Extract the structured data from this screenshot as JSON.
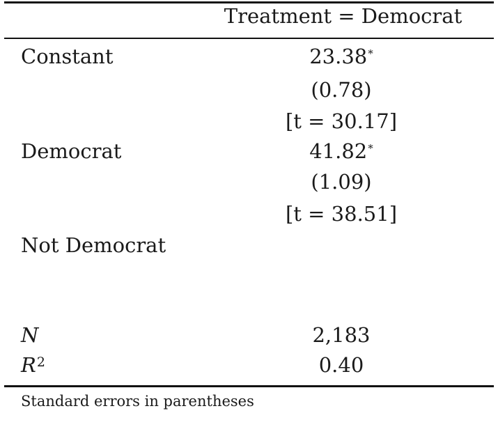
{
  "table": {
    "column_header": "Treatment = Democrat",
    "rows": [
      {
        "label": "Constant",
        "coef": "23.38",
        "star": "*",
        "se": "(0.78)",
        "t": "[t = 30.17]"
      },
      {
        "label": "Democrat",
        "coef": "41.82",
        "star": "*",
        "se": "(1.09)",
        "t": "[t = 38.51]"
      },
      {
        "label": "Not Democrat",
        "coef": "",
        "star": "",
        "se": "",
        "t": ""
      }
    ],
    "stats": [
      {
        "label": "N",
        "value": "2,183"
      },
      {
        "label": "R",
        "label_superscript": "2",
        "value": "0.40"
      }
    ],
    "note": "Standard errors in parentheses"
  }
}
